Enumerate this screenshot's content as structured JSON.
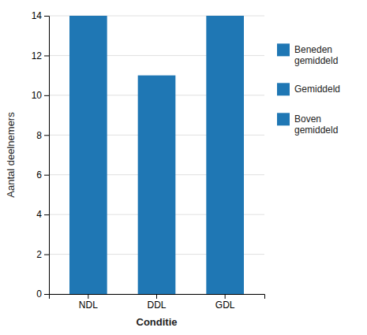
{
  "chart_data": {
    "type": "bar",
    "categories": [
      "NDL",
      "DDL",
      "GDL"
    ],
    "values": [
      14,
      11,
      14
    ],
    "xlabel": "Conditie",
    "ylabel": "Aantal deelnemers",
    "ylim": [
      0,
      14
    ],
    "yticks": [
      0,
      2,
      4,
      6,
      8,
      10,
      12,
      14
    ],
    "grid": true,
    "legend": "right",
    "legend_entries": [
      "Beneden\ngemiddeld",
      "Gemiddeld",
      "Boven\ngemiddeld"
    ]
  }
}
